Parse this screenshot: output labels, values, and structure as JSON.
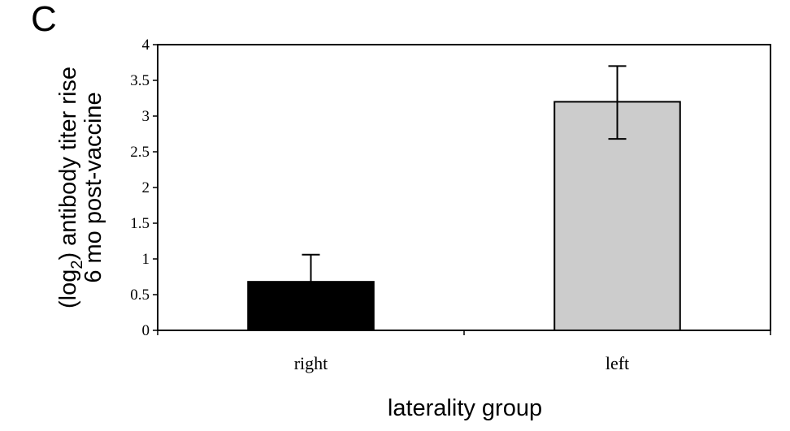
{
  "panel_label": "C",
  "chart_data": {
    "type": "bar",
    "categories": [
      "right",
      "left"
    ],
    "values": [
      0.68,
      3.2
    ],
    "error_upper": [
      1.06,
      3.7
    ],
    "error_lower": [
      0.68,
      2.68
    ],
    "bar_colors": [
      "#000000",
      "#cccccc"
    ],
    "xlabel": "laterality group",
    "ylabel_line1_pre": "(log",
    "ylabel_line1_sub": "2",
    "ylabel_line1_post": ") antibody titer rise",
    "ylabel_line2": "6 mo post-vaccine",
    "ylim": [
      0,
      4
    ],
    "yticks": [
      0,
      0.5,
      1,
      1.5,
      2,
      2.5,
      3,
      3.5,
      4
    ],
    "ytick_labels": [
      "0",
      "0.5",
      "1",
      "1.5",
      "2",
      "2.5",
      "3",
      "3.5",
      "4"
    ],
    "grid": false,
    "legend": "none"
  }
}
